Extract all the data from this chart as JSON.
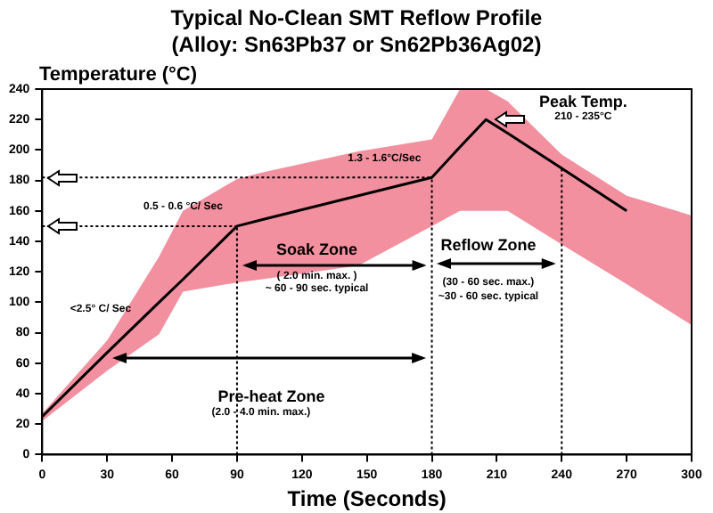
{
  "chart_data": {
    "type": "line",
    "title": "Typical  No-Clean SMT Reflow Profile",
    "subtitle": "(Alloy: Sn63Pb37 or Sn62Pb36Ag02)",
    "xlabel": "Time (Seconds)",
    "ylabel": "Temperature (°C)",
    "x": [
      0,
      30,
      54,
      65,
      90,
      101,
      146,
      180,
      193,
      205,
      215,
      240,
      270,
      300
    ],
    "series": [
      {
        "color": "#000000",
        "values": [
          25,
          67,
          100,
          115,
          150,
          154,
          170,
          182,
          202,
          220,
          211,
          188,
          160,
          null
        ],
        "lower": [
          22,
          55,
          79,
          107,
          113,
          115,
          124,
          150,
          160,
          160,
          160,
          138,
          112,
          85
        ],
        "upper": [
          27,
          75,
          130,
          160,
          181,
          185,
          199,
          207,
          240,
          240,
          232,
          197,
          170,
          157
        ]
      }
    ],
    "xlim": [
      0,
      300
    ],
    "xticks": [
      0,
      30,
      60,
      90,
      120,
      150,
      180,
      210,
      240,
      270,
      300
    ],
    "ylim": [
      0,
      240
    ],
    "yticks": [
      0,
      20,
      40,
      60,
      80,
      100,
      120,
      140,
      160,
      180,
      200,
      220,
      240
    ],
    "grid": false,
    "legend": false,
    "marker": "none",
    "line_style": "solid",
    "ref_lines": [
      {
        "axis": "x",
        "value": 90
      },
      {
        "axis": "x",
        "value": 180
      },
      {
        "axis": "x",
        "value": 240
      },
      {
        "axis": "y",
        "value": 182
      },
      {
        "axis": "y",
        "value": 150
      }
    ],
    "annotations": [
      "<2.5° C/ Sec",
      "0.5 - 0.6 °C/ Sec",
      "1.3 - 1.6°C/Sec",
      "Peak Temp.",
      "210 - 235°C",
      "Soak Zone",
      "( 2.0 min. max. )",
      "~ 60 - 90 sec. typical",
      "Reflow Zone",
      "(30 - 60 sec. max.)",
      "~30 - 60 sec. typical",
      "Pre-heat Zone",
      "(2.0 - 4.0 min. max.)"
    ]
  }
}
